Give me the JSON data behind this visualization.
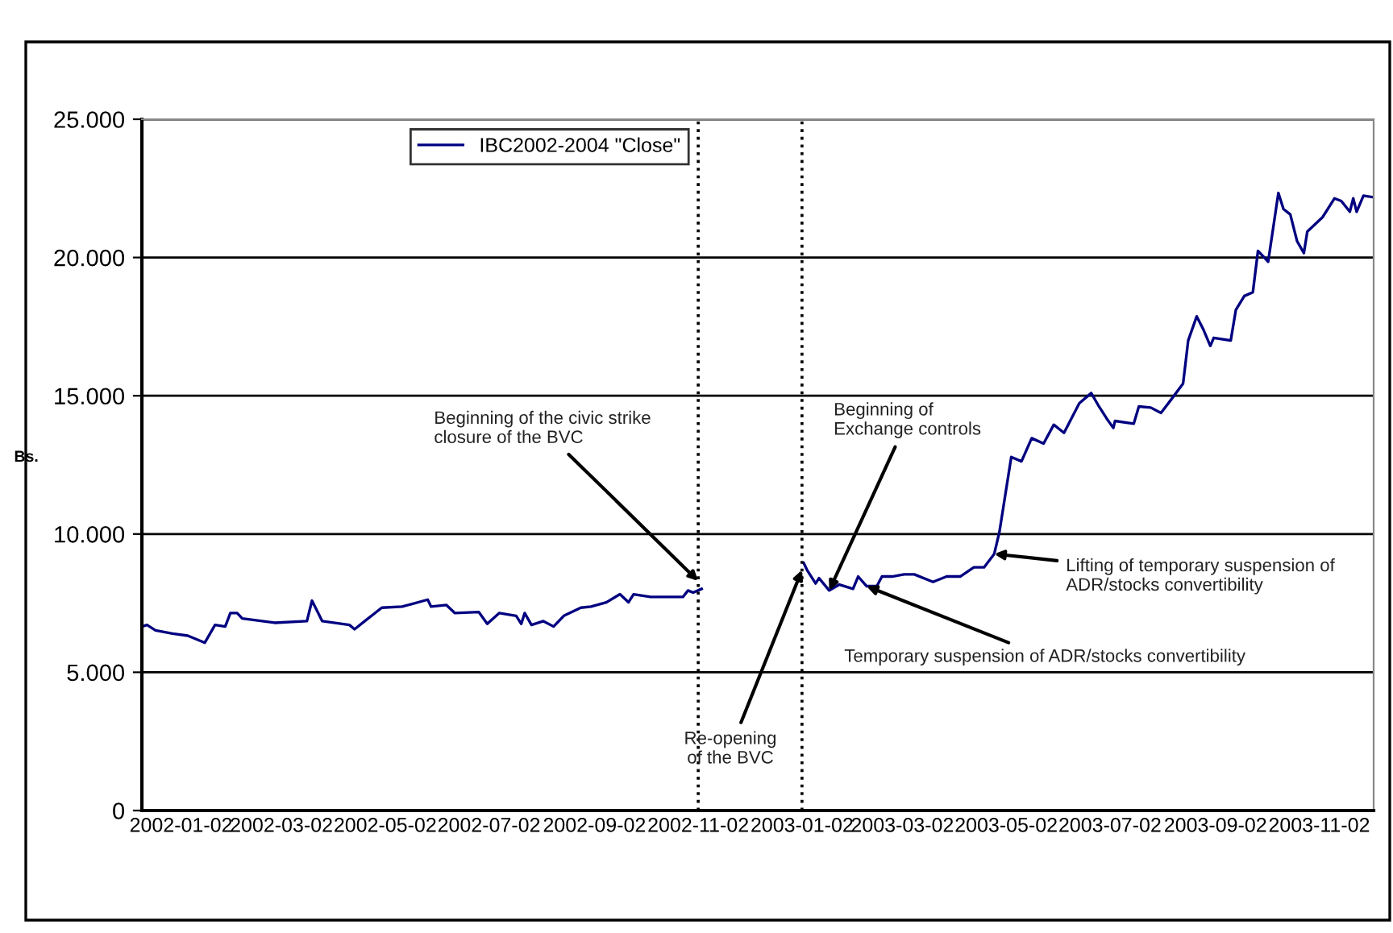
{
  "chart_data": {
    "type": "line",
    "ylabel": "Bs.",
    "x": [
      "2001-12-10",
      "2001-12-13",
      "2001-12-18",
      "2001-12-28",
      "2002-01-06",
      "2002-01-16",
      "2002-01-22",
      "2002-01-28",
      "2002-01-31",
      "2002-02-04",
      "2002-02-07",
      "2002-02-26",
      "2002-03-17",
      "2002-03-20",
      "2002-03-26",
      "2002-04-11",
      "2002-04-14",
      "2002-04-20",
      "2002-04-30",
      "2002-05-12",
      "2002-05-27",
      "2002-05-29",
      "2002-06-07",
      "2002-06-12",
      "2002-06-26",
      "2002-07-01",
      "2002-07-08",
      "2002-07-18",
      "2002-07-21",
      "2002-07-23",
      "2002-07-27",
      "2002-08-03",
      "2002-08-09",
      "2002-08-15",
      "2002-08-25",
      "2002-08-31",
      "2002-09-09",
      "2002-09-17",
      "2002-09-22",
      "2002-09-25",
      "2002-10-05",
      "2002-10-24",
      "2002-10-27",
      "2002-10-30",
      "2002-11-04",
      "2003-01-03",
      "2003-01-05",
      "2003-01-10",
      "2003-01-12",
      "2003-01-18",
      "2003-01-24",
      "2003-02-01",
      "2003-02-04",
      "2003-02-09",
      "2003-02-15",
      "2003-02-18",
      "2003-02-24",
      "2003-03-03",
      "2003-03-09",
      "2003-03-20",
      "2003-03-28",
      "2003-04-05",
      "2003-04-13",
      "2003-04-19",
      "2003-04-25",
      "2003-04-28",
      "2003-05-01",
      "2003-05-05",
      "2003-05-11",
      "2003-05-17",
      "2003-05-24",
      "2003-05-30",
      "2003-06-05",
      "2003-06-14",
      "2003-06-21",
      "2003-06-25",
      "2003-06-30",
      "2003-07-04",
      "2003-07-05",
      "2003-07-16",
      "2003-07-19",
      "2003-07-26",
      "2003-08-01",
      "2003-08-07",
      "2003-08-14",
      "2003-08-17",
      "2003-08-22",
      "2003-08-26",
      "2003-08-30",
      "2003-09-01",
      "2003-09-11",
      "2003-09-14",
      "2003-09-19",
      "2003-09-24",
      "2003-09-27",
      "2003-10-03",
      "2003-10-09",
      "2003-10-12",
      "2003-10-16",
      "2003-10-20",
      "2003-10-24",
      "2003-10-26",
      "2003-11-04",
      "2003-11-11",
      "2003-11-15",
      "2003-11-20",
      "2003-11-22",
      "2003-11-24",
      "2003-11-28",
      "2003-12-04"
    ],
    "series": [
      {
        "name": "IBC2002-2004 \"Close\"",
        "color": "#000080",
        "values": [
          6654,
          6712,
          6518,
          6400,
          6323,
          6070,
          6712,
          6654,
          7140,
          7140,
          6946,
          6790,
          6850,
          7590,
          6850,
          6712,
          6557,
          6850,
          7335,
          7374,
          7627,
          7374,
          7432,
          7140,
          7180,
          6750,
          7140,
          7043,
          6750,
          7140,
          6712,
          6850,
          6654,
          7043,
          7335,
          7374,
          7530,
          7822,
          7530,
          7822,
          7724,
          7724,
          7958,
          7880,
          8016,
          8950,
          8697,
          8211,
          8405,
          7958,
          8172,
          8016,
          8464,
          8114,
          8114,
          8464,
          8464,
          8542,
          8542,
          8269,
          8464,
          8464,
          8795,
          8795,
          9281,
          10060,
          11227,
          12784,
          12628,
          13465,
          13271,
          13952,
          13660,
          14730,
          15097,
          14670,
          14185,
          13836,
          14088,
          13991,
          14612,
          14573,
          14379,
          14864,
          15446,
          16998,
          17871,
          17386,
          16804,
          17095,
          16998,
          18104,
          18608,
          18744,
          20238,
          19850,
          22333,
          21751,
          21557,
          20587,
          20160,
          20936,
          21460,
          22139,
          22042,
          21654,
          22139,
          21654,
          22236,
          22178
        ]
      }
    ],
    "xlim": [
      "2001-12-10",
      "2003-12-04"
    ],
    "xticks": [
      {
        "value": "2002-01-02",
        "label": "2002-01-02"
      },
      {
        "value": "2002-03-02",
        "label": "2002-03-02"
      },
      {
        "value": "2002-05-02",
        "label": "2002-05-02"
      },
      {
        "value": "2002-07-02",
        "label": "2002-07-02"
      },
      {
        "value": "2002-09-02",
        "label": "2002-09-02"
      },
      {
        "value": "2002-11-02",
        "label": "2002-11-02"
      },
      {
        "value": "2003-01-02",
        "label": "2003-01-02"
      },
      {
        "value": "2003-03-02",
        "label": "2003-03-02"
      },
      {
        "value": "2003-05-02",
        "label": "2003-05-02"
      },
      {
        "value": "2003-07-02",
        "label": "2003-07-02"
      },
      {
        "value": "2003-09-02",
        "label": "2003-09-02"
      },
      {
        "value": "2003-11-02",
        "label": "2003-11-02"
      }
    ],
    "ylim": [
      0,
      25000
    ],
    "yticks": [
      0,
      {
        "value": 5000,
        "label": "5.000"
      },
      {
        "value": 10000,
        "label": "10.000"
      },
      {
        "value": 15000,
        "label": "15.000"
      },
      {
        "value": 20000,
        "label": "20.000"
      },
      {
        "value": 25000,
        "label": "25.000"
      }
    ],
    "grid": "y",
    "legend": "top left",
    "ref_lines": [
      {
        "axis": "x",
        "value": "2002-11-02",
        "line_style": "dotted",
        "color": "#000000"
      },
      {
        "axis": "x",
        "value": "2003-01-02",
        "line_style": "dotted",
        "color": "#000000"
      }
    ],
    "annotations": [
      {
        "text": "Beginning of the civic strike\nclosure of the BVC",
        "x": "2002-11-02",
        "y": 8300
      },
      {
        "text": "Re-opening\nof the BVC",
        "x": "2003-01-02",
        "y": 8700
      },
      {
        "text": "Beginning of\nExchange controls",
        "x": "2003-01-18",
        "y": 7958
      },
      {
        "text": "Temporary suspension of ADR/stocks convertibility",
        "x": "2003-02-09",
        "y": 8114
      },
      {
        "text": "Lifting of temporary suspension of\nADR/stocks convertibility",
        "x": "2003-04-25",
        "y": 9281
      }
    ]
  }
}
